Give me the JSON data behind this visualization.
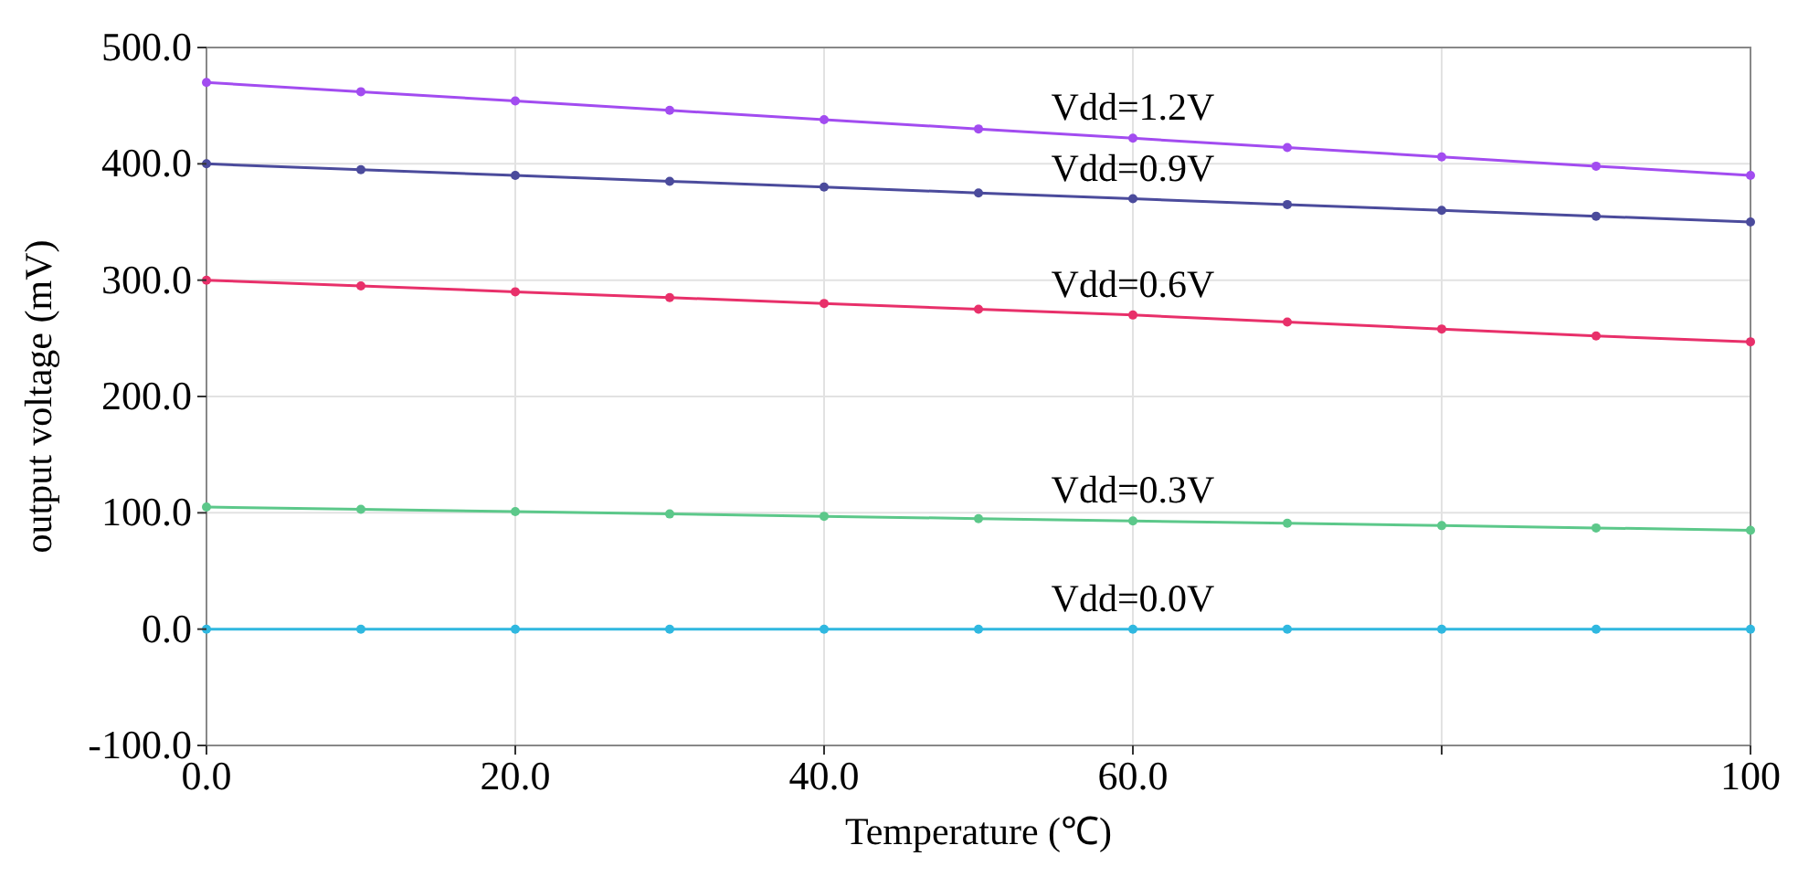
{
  "chart_data": {
    "type": "line",
    "xlabel": "Temperature (℃)",
    "ylabel": "output voltage (mV)",
    "x": [
      0,
      10,
      20,
      30,
      40,
      50,
      60,
      70,
      80,
      90,
      100
    ],
    "xlim": [
      0,
      100
    ],
    "xticks": [
      {
        "value": 0,
        "label": "0.0"
      },
      {
        "value": 20,
        "label": "20.0"
      },
      {
        "value": 40,
        "label": "40.0"
      },
      {
        "value": 60,
        "label": "60.0"
      },
      {
        "value": 80,
        "label": null
      },
      100
    ],
    "ylim": [
      -100,
      500
    ],
    "yticks": [
      {
        "value": -100,
        "label": "-100.0"
      },
      {
        "value": 0,
        "label": "0.0"
      },
      {
        "value": 100,
        "label": "100.0"
      },
      {
        "value": 200,
        "label": "200.0"
      },
      {
        "value": 300,
        "label": "300.0"
      },
      {
        "value": 400,
        "label": "400.0"
      },
      {
        "value": 500,
        "label": "500.0"
      }
    ],
    "grid": true,
    "marker": "circle",
    "line_style": "solid",
    "series": [
      {
        "name": "Vdd=1.2V",
        "color": "#a24cf0",
        "values": [
          470,
          462,
          454,
          446,
          438,
          430,
          422,
          414,
          406,
          398,
          390
        ]
      },
      {
        "name": "Vdd=0.9V",
        "color": "#4b4b9c",
        "values": [
          400,
          395,
          390,
          385,
          380,
          375,
          370,
          365,
          360,
          355,
          350
        ]
      },
      {
        "name": "Vdd=0.6V",
        "color": "#e8306a",
        "values": [
          300,
          295,
          290,
          285,
          280,
          275,
          270,
          264,
          258,
          252,
          247
        ]
      },
      {
        "name": "Vdd=0.3V",
        "color": "#5cc88a",
        "values": [
          105,
          103,
          101,
          99,
          97,
          95,
          93,
          91,
          89,
          87,
          85
        ]
      },
      {
        "name": "Vdd=0.0V",
        "color": "#30b8e0",
        "values": [
          0,
          0,
          0,
          0,
          0,
          0,
          0,
          0,
          0,
          0,
          0
        ]
      }
    ]
  }
}
